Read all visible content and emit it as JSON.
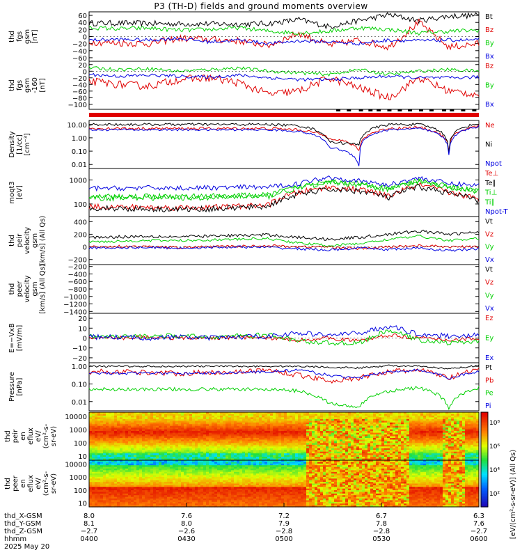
{
  "title": "P3 (TH-D) fields and ground moments overview",
  "date_label": "2025 May 20",
  "colors": {
    "black": "#000000",
    "red": "#e00000",
    "green": "#00d000",
    "blue": "#0000e0"
  },
  "chart_data": [
    {
      "id": "fgs_gsm",
      "type": "line",
      "ylabel": [
        "thd",
        "fgs",
        "gsm",
        "[nT]"
      ],
      "yticks": [
        "60",
        "40",
        "20",
        "0",
        "−20",
        "−40",
        "−60"
      ],
      "ylim": [
        -70,
        70
      ],
      "series": [
        {
          "name": "Bt",
          "color": "#000000",
          "base": [
            38,
            38,
            37,
            36,
            36,
            35,
            37,
            48,
            28,
            45,
            62,
            45,
            58,
            60
          ],
          "noise": 8
        },
        {
          "name": "Bz",
          "color": "#e00000",
          "base": [
            -15,
            -18,
            -20,
            -5,
            -8,
            -12,
            -25,
            10,
            -25,
            -10,
            -30,
            40,
            -30,
            -20
          ],
          "noise": 10
        },
        {
          "name": "By",
          "color": "#00d000",
          "base": [
            25,
            22,
            24,
            18,
            20,
            25,
            15,
            10,
            15,
            25,
            20,
            10,
            15,
            18
          ],
          "noise": 6
        },
        {
          "name": "Bx",
          "color": "#0000e0",
          "base": [
            -10,
            -8,
            -10,
            -5,
            -15,
            -10,
            -20,
            -12,
            -15,
            -20,
            -10,
            -12,
            -10,
            -10
          ],
          "noise": 5
        }
      ]
    },
    {
      "id": "fgs_gsm_offset",
      "type": "line",
      "ylabel": [
        "thd",
        "fgs",
        "gsm",
        "-160",
        "[nT]"
      ],
      "yticks": [
        "20",
        "0",
        "−20",
        "−40",
        "−60",
        "−80",
        "−100"
      ],
      "ylim": [
        -115,
        30
      ],
      "series": [
        {
          "name": "Bz",
          "color": "#e00000",
          "base": [
            -30,
            -40,
            -45,
            -25,
            -20,
            -35,
            -70,
            -60,
            -20,
            -50,
            -80,
            -20,
            -60,
            -70
          ],
          "noise": 12
        },
        {
          "name": "By",
          "color": "#00d000",
          "base": [
            10,
            5,
            8,
            0,
            5,
            10,
            0,
            -5,
            -10,
            5,
            -10,
            0,
            5,
            0
          ],
          "noise": 5
        },
        {
          "name": "Bx",
          "color": "#0000e0",
          "base": [
            -10,
            -15,
            -12,
            -15,
            -18,
            -12,
            -20,
            -25,
            -25,
            -20,
            -15,
            -20,
            -20,
            -18
          ],
          "noise": 5
        }
      ]
    },
    {
      "id": "density",
      "type": "line",
      "scale": "log",
      "ylabel": [
        "Density",
        "[1/cc]",
        "[cm⁻³]"
      ],
      "yticks": [
        "10.00",
        "1.00",
        "0.10",
        "0.01"
      ],
      "ylim": [
        0.005,
        20
      ],
      "series": [
        {
          "name": "Ne",
          "color": "#e00000",
          "base": [
            5,
            5,
            5,
            5,
            5,
            5,
            5,
            4,
            1,
            0.1,
            5,
            6,
            0.1,
            8
          ],
          "noise": 0.1
        },
        {
          "name": "Ni",
          "color": "#000000",
          "base": [
            10,
            10,
            10,
            10,
            10,
            10,
            10,
            8,
            0.5,
            0.3,
            10,
            10,
            0.1,
            12
          ],
          "noise": 0.1
        },
        {
          "name": "Npot",
          "color": "#0000e0",
          "base": [
            4,
            4,
            4,
            4,
            4,
            4,
            4,
            3,
            0.2,
            0.008,
            4,
            5,
            0.05,
            7
          ],
          "noise": 0.08
        }
      ]
    },
    {
      "id": "mom_t3",
      "type": "line",
      "scale": "log",
      "ylabel": [
        "moqt3",
        "[eV]"
      ],
      "yticks": [
        "1000",
        "100"
      ],
      "ylim": [
        30,
        3000
      ],
      "series": [
        {
          "name": "Te⊥",
          "color": "#e00000",
          "base": [
            80,
            75,
            72,
            70,
            72,
            80,
            90,
            300,
            500,
            400,
            200,
            600,
            300,
            150
          ],
          "noise": 0.12
        },
        {
          "name": "Te∥",
          "color": "#000000",
          "base": [
            70,
            65,
            62,
            60,
            62,
            70,
            80,
            250,
            400,
            350,
            180,
            500,
            280,
            130
          ],
          "noise": 0.12
        },
        {
          "name": "Ti⊥",
          "color": "#00d000",
          "base": [
            200,
            200,
            210,
            200,
            210,
            220,
            230,
            500,
            900,
            700,
            400,
            900,
            500,
            350
          ],
          "noise": 0.12
        },
        {
          "name": "Ti∥",
          "color": "#00d000",
          "base": [
            180,
            180,
            190,
            180,
            190,
            200,
            210,
            450,
            800,
            650,
            380,
            850,
            480,
            330
          ],
          "noise": 0.12
        },
        {
          "name": "Npot-T",
          "color": "#0000e0",
          "base": [
            450,
            450,
            470,
            460,
            470,
            490,
            500,
            700,
            1300,
            900,
            600,
            1200,
            700,
            600
          ],
          "noise": 0.1
        }
      ]
    },
    {
      "id": "peir_velocity",
      "type": "line",
      "ylabel": [
        "thd",
        "peir",
        "velocity",
        "gsm",
        "[km/s] (All Qs)"
      ],
      "yticks": [
        "400",
        "200",
        "0",
        "−200"
      ],
      "ylim": [
        -280,
        480
      ],
      "series": [
        {
          "name": "Vt",
          "color": "#000000",
          "base": [
            150,
            160,
            170,
            160,
            170,
            180,
            190,
            150,
            120,
            150,
            200,
            250,
            200,
            230
          ],
          "noise": 25
        },
        {
          "name": "Vz",
          "color": "#e00000",
          "base": [
            0,
            10,
            0,
            -10,
            0,
            10,
            20,
            0,
            0,
            -30,
            0,
            20,
            0,
            0
          ],
          "noise": 20
        },
        {
          "name": "Vy",
          "color": "#00d000",
          "base": [
            80,
            90,
            100,
            100,
            110,
            120,
            130,
            60,
            20,
            50,
            120,
            170,
            100,
            130
          ],
          "noise": 20
        },
        {
          "name": "Vx",
          "color": "#0000e0",
          "base": [
            -20,
            -10,
            -10,
            -20,
            -10,
            0,
            -10,
            -30,
            -50,
            -20,
            -40,
            -20,
            -60,
            -30
          ],
          "noise": 20
        }
      ]
    },
    {
      "id": "peer_velocity",
      "type": "line",
      "empty": true,
      "ylabel": [
        "thd",
        "peer",
        "velocity",
        "gsm",
        "[km/s] (All Qs)"
      ],
      "yticks": [
        "−200",
        "−400",
        "−600",
        "−800",
        "−1000",
        "−1200",
        "−1400"
      ],
      "ylim": [
        -1450,
        -150
      ],
      "series": [
        {
          "name": "Vt",
          "color": "#000000"
        },
        {
          "name": "Vz",
          "color": "#e00000"
        },
        {
          "name": "Vy",
          "color": "#00d000"
        },
        {
          "name": "Vx",
          "color": "#0000e0"
        }
      ]
    },
    {
      "id": "e_field",
      "type": "line",
      "ylabel": [
        "E=−VxB",
        "[mV/m]"
      ],
      "yticks": [
        "20",
        "10",
        "0",
        "−10",
        "−20"
      ],
      "ylim": [
        -25,
        25
      ],
      "series": [
        {
          "name": "Ez",
          "color": "#e00000",
          "base": [
            1,
            0,
            1,
            0,
            0,
            1,
            0,
            -2,
            0,
            -3,
            3,
            0,
            -2,
            0
          ],
          "noise": 2
        },
        {
          "name": "Ey",
          "color": "#00d000",
          "base": [
            2,
            1,
            2,
            2,
            1,
            2,
            3,
            -3,
            -5,
            -5,
            8,
            -2,
            -5,
            -3
          ],
          "noise": 2.5
        },
        {
          "name": "Ex",
          "color": "#0000e0",
          "base": [
            1,
            1,
            0,
            1,
            0,
            1,
            2,
            5,
            3,
            5,
            12,
            4,
            2,
            3
          ],
          "noise": 2.5
        }
      ]
    },
    {
      "id": "pressure",
      "type": "line",
      "scale": "log",
      "ylabel": [
        "Pressure",
        "[nPa]"
      ],
      "yticks": [
        "1.00",
        "0.10",
        "0.01"
      ],
      "ylim": [
        0.003,
        1.6
      ],
      "series": [
        {
          "name": "Pt",
          "color": "#000000",
          "base": [
            1,
            1,
            1,
            1,
            1,
            1,
            1,
            1,
            0.9,
            0.8,
            1.1,
            1,
            0.7,
            1.1
          ],
          "noise": 0.05
        },
        {
          "name": "Pb",
          "color": "#e00000",
          "base": [
            0.5,
            0.5,
            0.45,
            0.4,
            0.45,
            0.5,
            0.6,
            0.3,
            0.15,
            0.2,
            0.5,
            0.6,
            0.2,
            0.6
          ],
          "noise": 0.15
        },
        {
          "name": "Pe",
          "color": "#00d000",
          "base": [
            0.05,
            0.05,
            0.05,
            0.05,
            0.05,
            0.05,
            0.05,
            0.04,
            0.008,
            0.004,
            0.04,
            0.06,
            0.003,
            0.06
          ],
          "noise": 0.1
        },
        {
          "name": "Pi",
          "color": "#0000e0",
          "base": [
            0.4,
            0.4,
            0.42,
            0.4,
            0.42,
            0.45,
            0.5,
            0.6,
            0.3,
            0.2,
            0.5,
            0.6,
            0.2,
            0.5
          ],
          "noise": 0.08
        }
      ]
    },
    {
      "id": "peir_eflux",
      "type": "heatmap",
      "ylabel": [
        "thd",
        "peir",
        "en",
        "eflux",
        "eV/",
        "(cm²-s-",
        "sr-eV)"
      ],
      "yticks": [
        "10000",
        "1000",
        "100",
        "10"
      ],
      "ylim": [
        5,
        20000
      ]
    },
    {
      "id": "peer_eflux",
      "type": "heatmap",
      "ylabel": [
        "thd",
        "peer",
        "en",
        "eflux",
        "eV/",
        "(cm²-s-",
        "sr-eV)"
      ],
      "yticks": [
        "10000",
        "1000",
        "100",
        "10"
      ],
      "ylim": [
        5,
        20000
      ]
    }
  ],
  "colorbar": {
    "label": "[eV/(cm²-s-sr-eV)] (All Qs)",
    "ticks": [
      "10⁸",
      "10⁶",
      "10⁴",
      "10²"
    ]
  },
  "xaxis": {
    "rows": [
      {
        "label": "thd_X-GSM",
        "values": [
          "8.0",
          "7.6",
          "7.2",
          "6.7",
          "6.3"
        ]
      },
      {
        "label": "thd_Y-GSM",
        "values": [
          "8.1",
          "8.0",
          "7.9",
          "7.8",
          "7.6"
        ]
      },
      {
        "label": "thd_Z-GSM",
        "values": [
          "−2.7",
          "−2.6",
          "−2.8",
          "−2.8",
          "−2.7"
        ]
      },
      {
        "label": "hhmm",
        "values": [
          "0400",
          "0430",
          "0500",
          "0530",
          "0600"
        ]
      }
    ]
  }
}
